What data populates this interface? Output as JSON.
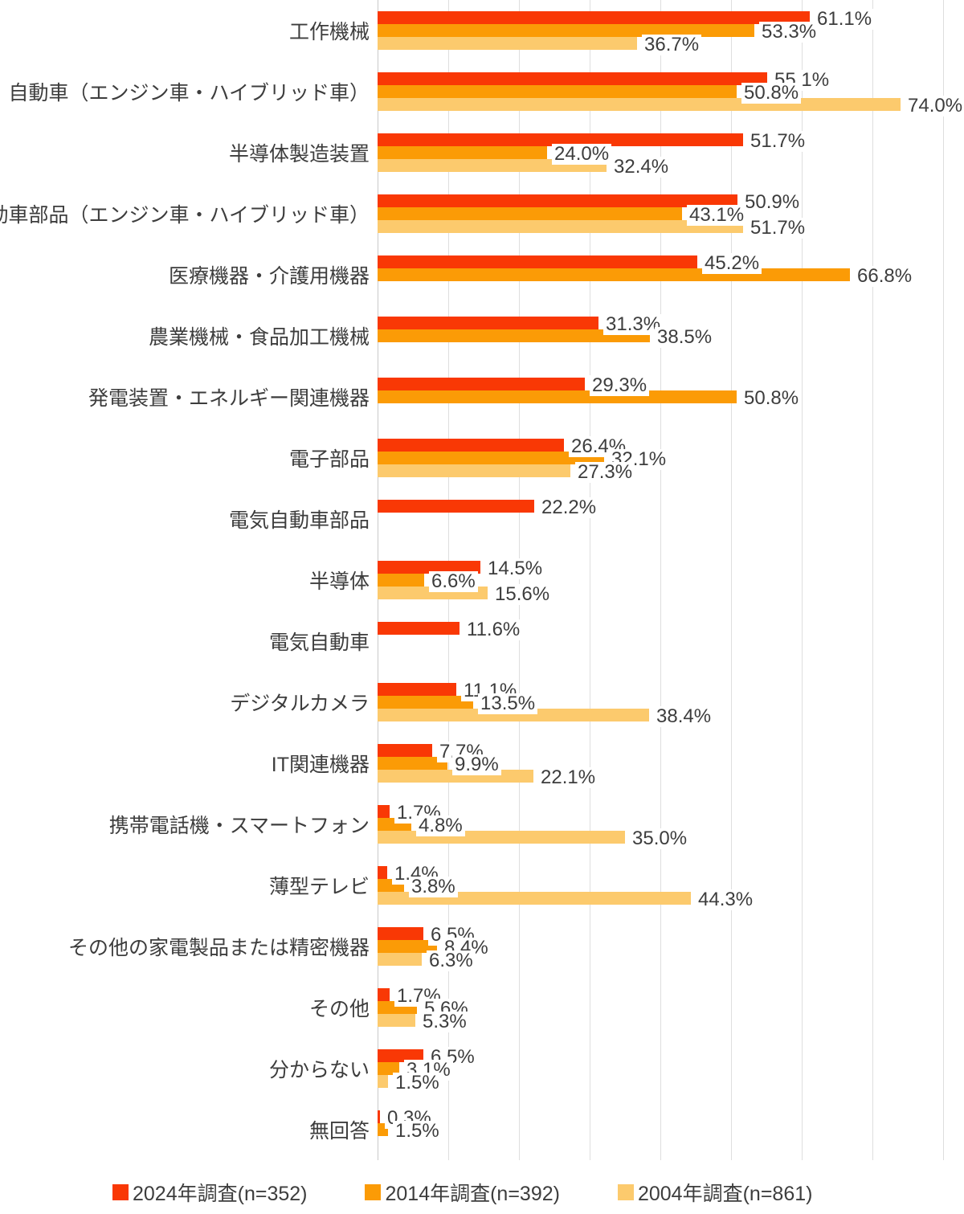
{
  "chart_data": {
    "type": "bar",
    "orientation": "horizontal",
    "title": "",
    "xlabel": "",
    "ylabel": "",
    "xlim": [
      0,
      80
    ],
    "grid_step": 10,
    "grid": true,
    "value_suffix": "%",
    "legend_position": "bottom",
    "categories": [
      "工作機械",
      "自動車（エンジン車・ハイブリッド車）",
      "半導体製造装置",
      "自動車部品（エンジン車・ハイブリッド車）",
      "医療機器・介護用機器",
      "農業機械・食品加工機械",
      "発電装置・エネルギー関連機器",
      "電子部品",
      "電気自動車部品",
      "半導体",
      "電気自動車",
      "デジタルカメラ",
      "IT関連機器",
      "携帯電話機・スマートフォン",
      "薄型テレビ",
      "その他の家電製品または精密機器",
      "その他",
      "分からない",
      "無回答"
    ],
    "series": [
      {
        "key": "2024",
        "name": "2024年調査(n=352)",
        "color": "#f93805",
        "values": [
          61.1,
          55.1,
          51.7,
          50.9,
          45.2,
          31.3,
          29.3,
          26.4,
          22.2,
          14.5,
          11.6,
          11.1,
          7.7,
          1.7,
          1.4,
          6.5,
          1.7,
          6.5,
          0.3
        ]
      },
      {
        "key": "2014",
        "name": "2014年調査(n=392)",
        "color": "#fb9b06",
        "values": [
          53.3,
          50.8,
          24.0,
          43.1,
          66.8,
          38.5,
          50.8,
          32.1,
          null,
          6.6,
          null,
          13.5,
          9.9,
          4.8,
          3.8,
          8.4,
          5.6,
          3.1,
          1.5
        ]
      },
      {
        "key": "2004",
        "name": "2004年調査(n=861)",
        "color": "#fcca6d",
        "values": [
          36.7,
          74.0,
          32.4,
          51.7,
          null,
          null,
          null,
          27.3,
          null,
          15.6,
          null,
          38.4,
          22.1,
          35.0,
          44.3,
          6.3,
          5.3,
          1.5,
          null
        ]
      }
    ]
  }
}
